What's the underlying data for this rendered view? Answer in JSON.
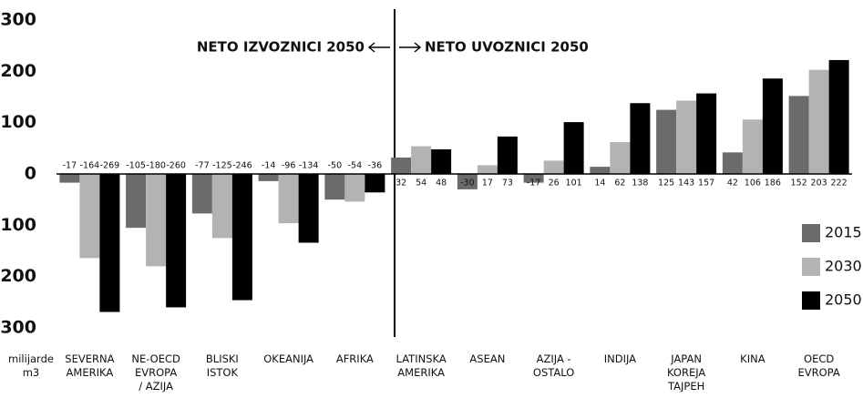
{
  "chart_data": {
    "type": "bar",
    "categories": [
      "SEVERNA\nAMERIKA",
      "NE-OECD\nEVROPA\n/ AZIJA",
      "BLISKI\nISTOK",
      "OKEANIJA",
      "AFRIKA",
      "LATINSKA\nAMERIKA",
      "ASEAN",
      "AZIJA -\nOSTALO",
      "INDIJA",
      "JAPAN\nKOREJA\nTAJPEH",
      "KINA",
      "OECD\nEVROPA"
    ],
    "series": [
      {
        "name": "2015",
        "color": "#6b6b6b",
        "values": [
          -17,
          -105,
          -77,
          -14,
          -50,
          32,
          -30,
          -17,
          14,
          125,
          42,
          152
        ]
      },
      {
        "name": "2030",
        "color": "#b3b3b3",
        "values": [
          -164,
          -180,
          -125,
          -96,
          -54,
          54,
          17,
          26,
          62,
          143,
          106,
          203
        ]
      },
      {
        "name": "2050",
        "color": "#000000",
        "values": [
          -269,
          -260,
          -246,
          -134,
          -36,
          48,
          73,
          101,
          138,
          157,
          186,
          222
        ]
      }
    ],
    "y_label": "milijarde\nm3",
    "annotations": [
      "NETO IZVOZNICI 2050",
      "NETO UVOZNICI 2050"
    ],
    "ylim": [
      -300,
      300
    ],
    "yticks": [
      -300,
      -200,
      -100,
      0,
      100,
      200,
      300
    ],
    "grid": false,
    "legend": "lower right"
  }
}
